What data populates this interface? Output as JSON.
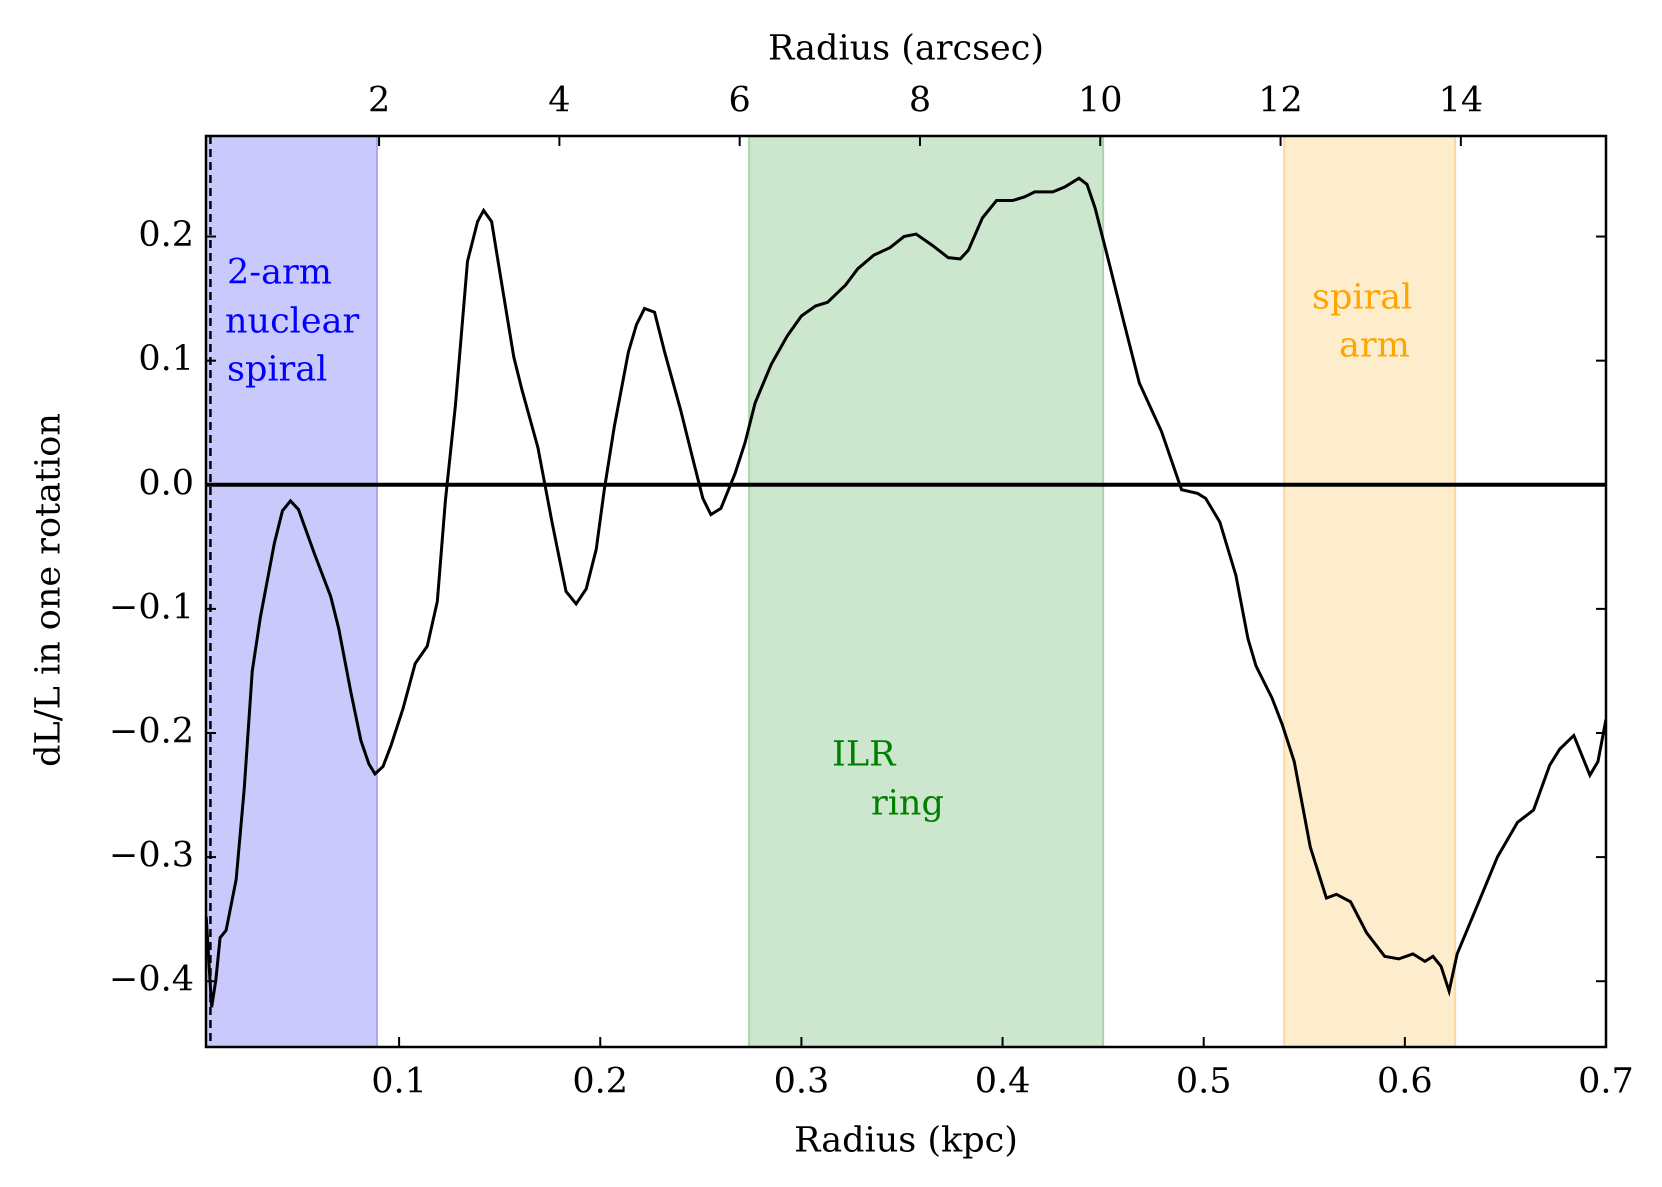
{
  "chart_data": {
    "type": "line",
    "xlabel": "Radius (kpc)",
    "x2label": "Radius (arcsec)",
    "ylabel": "dL/L in one rotation",
    "xlim": [
      0.004,
      0.7
    ],
    "xticks": [
      0.1,
      0.2,
      0.3,
      0.4,
      0.5,
      0.6,
      0.7
    ],
    "x2lim": [
      0.08,
      15.61
    ],
    "x2ticks": [
      2,
      4,
      6,
      8,
      10,
      12,
      14
    ],
    "ylim": [
      -0.453,
      0.281
    ],
    "yticks": [
      {
        "value": -0.4,
        "label": "−0.4"
      },
      {
        "value": -0.3,
        "label": "−0.3"
      },
      {
        "value": -0.2,
        "label": "−0.2"
      },
      {
        "value": -0.1,
        "label": "−0.1"
      },
      {
        "value": 0,
        "label": "0.0"
      },
      0.1,
      0.2
    ],
    "hline": 0,
    "vline": 0.0062,
    "spans": [
      {
        "x": [
          0.004,
          0.089
        ],
        "color": "#c9c9fb",
        "edge": "#a8a8f5"
      },
      {
        "x": [
          0.274,
          0.45
        ],
        "color": "#cde6ce",
        "edge": "#a9d3aa"
      },
      {
        "x": [
          0.54,
          0.625
        ],
        "color": "#feedcc",
        "edge": "#fbd99a"
      }
    ],
    "annotations": [
      {
        "lines": [
          "2-arm",
          "nuclear",
          "spiral"
        ],
        "color": "#0000ff"
      },
      {
        "lines": [
          "ILR",
          "ring"
        ],
        "color": "#008000"
      },
      {
        "lines": [
          "spiral",
          "arm"
        ],
        "color": "#ffa500"
      }
    ],
    "series": [
      {
        "color": "#000000",
        "x": [
          0.0041,
          0.0068,
          0.0089,
          0.011,
          0.014,
          0.019,
          0.023,
          0.027,
          0.031,
          0.038,
          0.042,
          0.046,
          0.05,
          0.058,
          0.066,
          0.07,
          0.076,
          0.081,
          0.085,
          0.088,
          0.092,
          0.096,
          0.102,
          0.108,
          0.114,
          0.119,
          0.123,
          0.128,
          0.134,
          0.139,
          0.142,
          0.146,
          0.15,
          0.157,
          0.161,
          0.169,
          0.176,
          0.183,
          0.188,
          0.193,
          0.198,
          0.202,
          0.207,
          0.214,
          0.218,
          0.222,
          0.227,
          0.232,
          0.24,
          0.246,
          0.251,
          0.255,
          0.26,
          0.267,
          0.272,
          0.277,
          0.285,
          0.293,
          0.3,
          0.307,
          0.313,
          0.322,
          0.328,
          0.336,
          0.344,
          0.351,
          0.357,
          0.365,
          0.373,
          0.379,
          0.383,
          0.39,
          0.397,
          0.405,
          0.411,
          0.416,
          0.425,
          0.431,
          0.438,
          0.442,
          0.446,
          0.452,
          0.46,
          0.468,
          0.479,
          0.489,
          0.497,
          0.501,
          0.508,
          0.516,
          0.522,
          0.526,
          0.534,
          0.539,
          0.545,
          0.553,
          0.561,
          0.566,
          0.573,
          0.581,
          0.59,
          0.597,
          0.604,
          0.61,
          0.614,
          0.618,
          0.622,
          0.626,
          0.635,
          0.646,
          0.656,
          0.664,
          0.672,
          0.677,
          0.684,
          0.692,
          0.696,
          0.7
        ],
        "values": [
          -0.348,
          -0.421,
          -0.399,
          -0.365,
          -0.359,
          -0.318,
          -0.245,
          -0.15,
          -0.107,
          -0.047,
          -0.021,
          -0.013,
          -0.02,
          -0.056,
          -0.09,
          -0.116,
          -0.167,
          -0.206,
          -0.225,
          -0.233,
          -0.227,
          -0.21,
          -0.18,
          -0.144,
          -0.13,
          -0.094,
          -0.013,
          0.064,
          0.18,
          0.212,
          0.221,
          0.212,
          0.172,
          0.103,
          0.077,
          0.03,
          -0.03,
          -0.086,
          -0.096,
          -0.084,
          -0.052,
          -0.004,
          0.047,
          0.107,
          0.129,
          0.142,
          0.139,
          0.107,
          0.06,
          0.021,
          -0.011,
          -0.024,
          -0.019,
          0.009,
          0.034,
          0.066,
          0.097,
          0.12,
          0.136,
          0.144,
          0.147,
          0.161,
          0.174,
          0.185,
          0.191,
          0.2,
          0.202,
          0.193,
          0.183,
          0.182,
          0.189,
          0.215,
          0.229,
          0.229,
          0.232,
          0.236,
          0.236,
          0.24,
          0.247,
          0.242,
          0.223,
          0.185,
          0.133,
          0.082,
          0.043,
          -0.004,
          -0.007,
          -0.011,
          -0.03,
          -0.073,
          -0.124,
          -0.146,
          -0.172,
          -0.193,
          -0.223,
          -0.292,
          -0.333,
          -0.33,
          -0.336,
          -0.361,
          -0.38,
          -0.382,
          -0.378,
          -0.384,
          -0.38,
          -0.388,
          -0.408,
          -0.378,
          -0.343,
          -0.3,
          -0.272,
          -0.262,
          -0.226,
          -0.213,
          -0.202,
          -0.234,
          -0.223,
          -0.189
        ]
      }
    ]
  }
}
